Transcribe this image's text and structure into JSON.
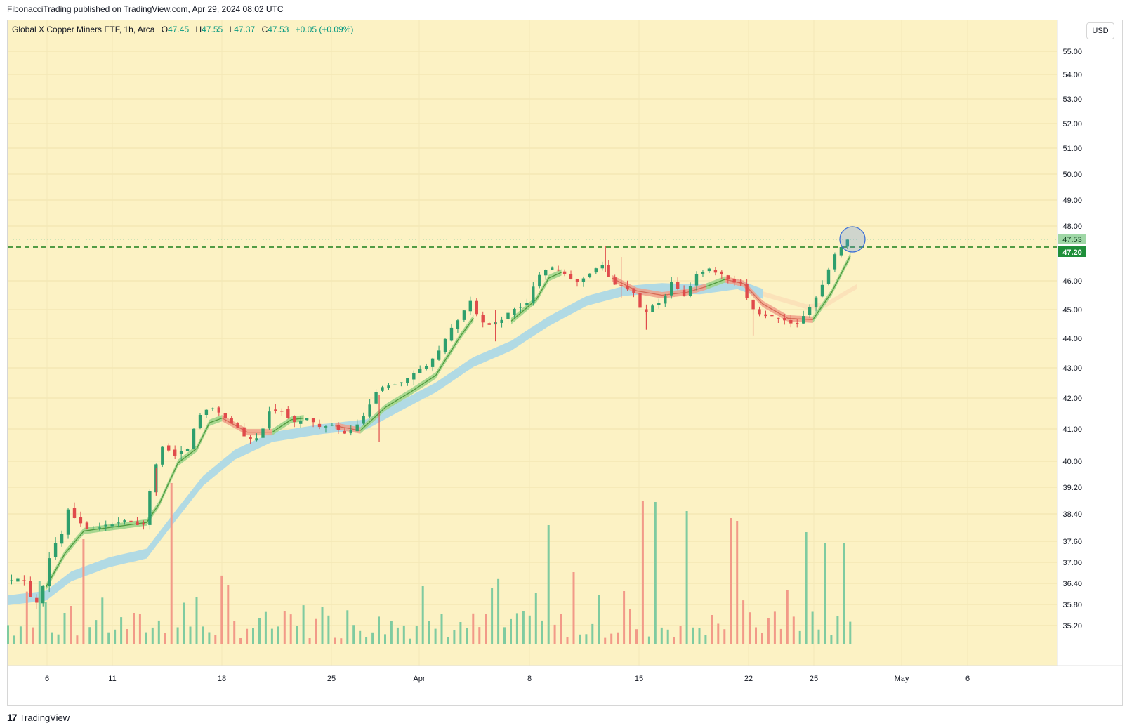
{
  "header": {
    "published": "FibonacciTrading published on TradingView.com, Apr 29, 2024 08:02 UTC"
  },
  "legend": {
    "symbol": "Global X Copper Miners ETF, 1h, Arca",
    "o_label": "O",
    "o": "47.45",
    "h_label": "H",
    "h": "47.55",
    "l_label": "L",
    "l": "47.37",
    "c_label": "C",
    "c": "47.53",
    "change": "+0.05 (+0.09%)"
  },
  "currency_button": "USD",
  "footer": {
    "logo": "17",
    "brand": "TradingView"
  },
  "colors": {
    "background": "#fcf2c4",
    "up": "#2e9f6d",
    "down": "#e04b4b",
    "volume_up": "#7fcba0",
    "volume_down": "#f29a88",
    "dashed_line": "#1b7e1b",
    "last_price_badge": "#9fd7a6",
    "level_badge": "#1f8f3a",
    "ribbon_slow": "#add8e6",
    "ribbon_fast_up": "#9fd48b",
    "ribbon_fast_down": "#f0a08a",
    "circle": "#3b6fd6"
  },
  "chart_data": {
    "type": "candlestick",
    "timeframe": "1h",
    "y_ticks": [
      "55.00",
      "54.00",
      "53.00",
      "52.00",
      "51.00",
      "50.00",
      "49.00",
      "48.00",
      "46.00",
      "45.00",
      "44.00",
      "43.00",
      "42.00",
      "41.00",
      "40.00",
      "39.20",
      "38.40",
      "37.60",
      "37.00",
      "36.40",
      "35.80",
      "35.20"
    ],
    "x_ticks": [
      "6",
      "11",
      "18",
      "25",
      "Apr",
      "8",
      "15",
      "22",
      "25",
      "May",
      "6"
    ],
    "last_price": "47.53",
    "horizontal_level": "47.20",
    "path": [
      {
        "t": 0,
        "p": 36.45
      },
      {
        "t": 1.5,
        "p": 36.5
      },
      {
        "t": 3,
        "p": 36.5
      },
      {
        "t": 4,
        "p": 36.0
      },
      {
        "t": 5.5,
        "p": 35.8
      },
      {
        "t": 6.5,
        "p": 36.9
      },
      {
        "t": 7.5,
        "p": 37.4
      },
      {
        "t": 9,
        "p": 37.8
      },
      {
        "t": 10,
        "p": 38.55
      },
      {
        "t": 11.5,
        "p": 38.2
      },
      {
        "t": 13,
        "p": 38.0
      },
      {
        "t": 16,
        "p": 38.05
      },
      {
        "t": 19,
        "p": 38.2
      },
      {
        "t": 22,
        "p": 38.05
      },
      {
        "t": 23.5,
        "p": 39.6
      },
      {
        "t": 25,
        "p": 40.45
      },
      {
        "t": 27,
        "p": 40.2
      },
      {
        "t": 29,
        "p": 40.4
      },
      {
        "t": 30.5,
        "p": 41.3
      },
      {
        "t": 31.5,
        "p": 41.6
      },
      {
        "t": 33,
        "p": 41.7
      },
      {
        "t": 35,
        "p": 41.35
      },
      {
        "t": 37,
        "p": 41.05
      },
      {
        "t": 38.5,
        "p": 40.65
      },
      {
        "t": 40.5,
        "p": 40.7
      },
      {
        "t": 42,
        "p": 41.6
      },
      {
        "t": 44,
        "p": 41.6
      },
      {
        "t": 46,
        "p": 41.2
      },
      {
        "t": 48,
        "p": 41.35
      },
      {
        "t": 50,
        "p": 41.05
      },
      {
        "t": 52,
        "p": 41.1
      },
      {
        "t": 54,
        "p": 40.85
      },
      {
        "t": 55.5,
        "p": 41.0
      },
      {
        "t": 57,
        "p": 41.4
      },
      {
        "t": 59,
        "p": 42.2
      },
      {
        "t": 61,
        "p": 42.45
      },
      {
        "t": 63,
        "p": 42.5
      },
      {
        "t": 65,
        "p": 42.8
      },
      {
        "t": 67,
        "p": 43.05
      },
      {
        "t": 69,
        "p": 43.55
      },
      {
        "t": 71,
        "p": 44.35
      },
      {
        "t": 72.5,
        "p": 44.75
      },
      {
        "t": 74,
        "p": 45.3
      },
      {
        "t": 75.5,
        "p": 44.6
      },
      {
        "t": 77,
        "p": 44.45
      },
      {
        "t": 79,
        "p": 44.65
      },
      {
        "t": 81,
        "p": 45.05
      },
      {
        "t": 83,
        "p": 45.2
      },
      {
        "t": 84.5,
        "p": 46.15
      },
      {
        "t": 86,
        "p": 46.4
      },
      {
        "t": 87.5,
        "p": 46.45
      },
      {
        "t": 89,
        "p": 46.2
      },
      {
        "t": 91,
        "p": 45.95
      },
      {
        "t": 92.5,
        "p": 46.2
      },
      {
        "t": 94,
        "p": 46.45
      },
      {
        "t": 95,
        "p": 46.55
      },
      {
        "t": 96.5,
        "p": 45.9
      },
      {
        "t": 98,
        "p": 45.85
      },
      {
        "t": 100,
        "p": 45.6
      },
      {
        "t": 101.5,
        "p": 44.75
      },
      {
        "t": 103,
        "p": 45.15
      },
      {
        "t": 104.5,
        "p": 45.25
      },
      {
        "t": 106,
        "p": 45.95
      },
      {
        "t": 108,
        "p": 45.45
      },
      {
        "t": 110,
        "p": 46.25
      },
      {
        "t": 112,
        "p": 46.4
      },
      {
        "t": 114,
        "p": 46.2
      },
      {
        "t": 115.5,
        "p": 45.95
      },
      {
        "t": 117,
        "p": 45.9
      },
      {
        "t": 118.5,
        "p": 45.1
      },
      {
        "t": 120,
        "p": 44.85
      },
      {
        "t": 122,
        "p": 44.75
      },
      {
        "t": 124,
        "p": 44.6
      },
      {
        "t": 126,
        "p": 44.5
      },
      {
        "t": 127.5,
        "p": 44.95
      },
      {
        "t": 129,
        "p": 45.45
      },
      {
        "t": 130.5,
        "p": 46.1
      },
      {
        "t": 132,
        "p": 46.95
      },
      {
        "t": 133.5,
        "p": 47.35
      },
      {
        "t": 134,
        "p": 47.53
      }
    ],
    "spikes": [
      {
        "t": 95,
        "h": 47.25,
        "l": 46.3
      },
      {
        "t": 97.5,
        "h": 46.85,
        "l": 45.4
      },
      {
        "t": 101.5,
        "h": 45.0,
        "l": 44.3
      },
      {
        "t": 77.5,
        "h": 45.0,
        "l": 43.9
      },
      {
        "t": 118.5,
        "h": 45.3,
        "l": 44.1
      },
      {
        "t": 59,
        "h": 42.1,
        "l": 40.6
      },
      {
        "t": 23.5,
        "h": 39.8,
        "l": 38.95
      }
    ],
    "ma_slow": [
      {
        "t": 0,
        "p": 35.92
      },
      {
        "t": 6,
        "p": 36.05
      },
      {
        "t": 10,
        "p": 36.6
      },
      {
        "t": 16,
        "p": 37.0
      },
      {
        "t": 22,
        "p": 37.25
      },
      {
        "t": 26,
        "p": 38.2
      },
      {
        "t": 31,
        "p": 39.4
      },
      {
        "t": 36,
        "p": 40.2
      },
      {
        "t": 42,
        "p": 40.75
      },
      {
        "t": 50,
        "p": 41.0
      },
      {
        "t": 57,
        "p": 41.15
      },
      {
        "t": 62,
        "p": 41.7
      },
      {
        "t": 68,
        "p": 42.35
      },
      {
        "t": 74,
        "p": 43.2
      },
      {
        "t": 80,
        "p": 43.75
      },
      {
        "t": 86,
        "p": 44.6
      },
      {
        "t": 92,
        "p": 45.3
      },
      {
        "t": 98,
        "p": 45.65
      },
      {
        "t": 104,
        "p": 45.75
      },
      {
        "t": 110,
        "p": 45.7
      },
      {
        "t": 116,
        "p": 45.88
      },
      {
        "t": 120,
        "p": 45.55
      }
    ],
    "ma_slow_future": [
      {
        "t": 120,
        "p": 45.55
      },
      {
        "t": 127,
        "p": 45.1
      },
      {
        "t": 130,
        "p": 45.15
      },
      {
        "t": 133,
        "p": 45.55
      },
      {
        "t": 135,
        "p": 45.8
      }
    ],
    "ma_fast_up_segments": [
      [
        {
          "t": 6,
          "p": 36.3
        },
        {
          "t": 9,
          "p": 37.25
        },
        {
          "t": 12,
          "p": 37.9
        },
        {
          "t": 16,
          "p": 38.0
        },
        {
          "t": 22,
          "p": 38.15
        },
        {
          "t": 24,
          "p": 38.7
        },
        {
          "t": 27,
          "p": 39.95
        },
        {
          "t": 30,
          "p": 40.4
        },
        {
          "t": 32,
          "p": 41.2
        },
        {
          "t": 34,
          "p": 41.35
        }
      ],
      [
        {
          "t": 42,
          "p": 40.9
        },
        {
          "t": 45,
          "p": 41.3
        },
        {
          "t": 47,
          "p": 41.35
        }
      ],
      [
        {
          "t": 56,
          "p": 40.95
        },
        {
          "t": 60,
          "p": 41.7
        },
        {
          "t": 64,
          "p": 42.2
        },
        {
          "t": 68,
          "p": 42.75
        },
        {
          "t": 72,
          "p": 44.1
        },
        {
          "t": 74,
          "p": 44.7
        }
      ],
      [
        {
          "t": 80,
          "p": 44.6
        },
        {
          "t": 84,
          "p": 45.35
        },
        {
          "t": 86,
          "p": 46.1
        },
        {
          "t": 88,
          "p": 46.3
        }
      ],
      [
        {
          "t": 111,
          "p": 45.8
        },
        {
          "t": 114,
          "p": 46.05
        }
      ],
      [
        {
          "t": 128,
          "p": 44.65
        },
        {
          "t": 131,
          "p": 45.6
        },
        {
          "t": 134,
          "p": 46.9
        }
      ]
    ],
    "ma_fast_down_segments": [
      [
        {
          "t": 34,
          "p": 41.35
        },
        {
          "t": 38,
          "p": 40.9
        },
        {
          "t": 42,
          "p": 40.9
        }
      ],
      [
        {
          "t": 52,
          "p": 41.1
        },
        {
          "t": 56,
          "p": 40.95
        }
      ],
      [
        {
          "t": 96,
          "p": 46.1
        },
        {
          "t": 100,
          "p": 45.65
        },
        {
          "t": 104,
          "p": 45.5
        },
        {
          "t": 108,
          "p": 45.6
        },
        {
          "t": 111,
          "p": 45.8
        }
      ],
      [
        {
          "t": 114,
          "p": 46.05
        },
        {
          "t": 117,
          "p": 45.9
        },
        {
          "t": 120,
          "p": 45.2
        },
        {
          "t": 124,
          "p": 44.7
        },
        {
          "t": 128,
          "p": 44.65
        }
      ]
    ]
  }
}
